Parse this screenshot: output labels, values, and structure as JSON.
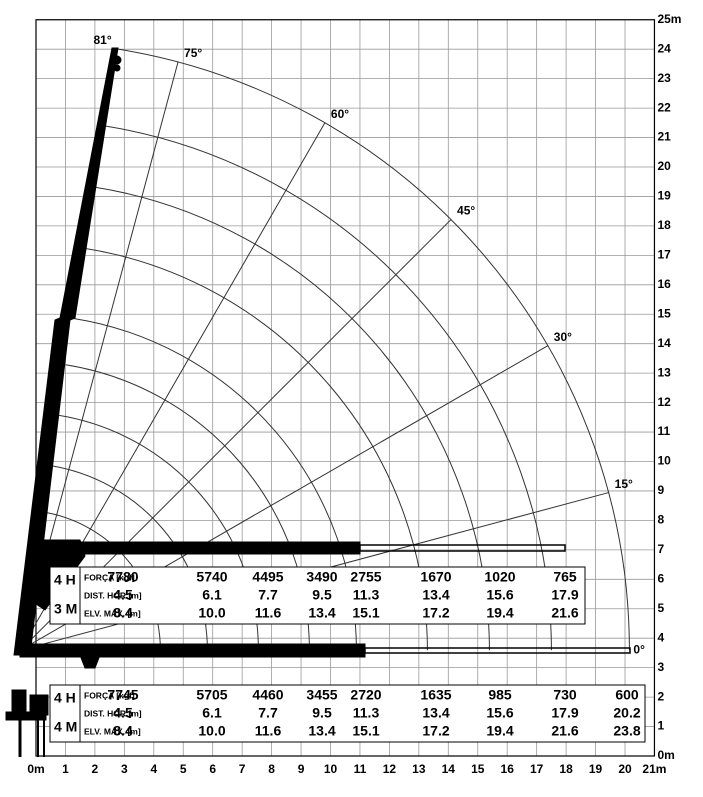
{
  "y_axis_labels": [
    "0m",
    "1",
    "2",
    "3",
    "4",
    "5",
    "6",
    "7",
    "8",
    "9",
    "10",
    "11",
    "12",
    "13",
    "14",
    "15",
    "16",
    "17",
    "18",
    "19",
    "20",
    "21",
    "22",
    "23",
    "24",
    "25m"
  ],
  "x_axis_labels": [
    "0m",
    "1",
    "2",
    "3",
    "4",
    "5",
    "6",
    "7",
    "8",
    "9",
    "10",
    "11",
    "12",
    "13",
    "14",
    "15",
    "16",
    "17",
    "18",
    "19",
    "20",
    "21m"
  ],
  "angle_labels": [
    {
      "label": "0°",
      "deg": 0
    },
    {
      "label": "15°",
      "deg": 15
    },
    {
      "label": "30°",
      "deg": 30
    },
    {
      "label": "45°",
      "deg": 45
    },
    {
      "label": "60°",
      "deg": 60
    },
    {
      "label": "75°",
      "deg": 75
    },
    {
      "label": "81°",
      "deg": 81
    }
  ],
  "tables": [
    {
      "side_labels": [
        "4 H",
        "3 M"
      ],
      "row_labels": [
        "FORÇA [kgf]",
        "DIST. HOR.[m]",
        "ELV. MÁX. [m]"
      ],
      "rows": [
        [
          "7780",
          "5740",
          "4495",
          "3490",
          "2755",
          "1670",
          "1020",
          "765"
        ],
        [
          "4.5",
          "6.1",
          "7.7",
          "9.5",
          "11.3",
          "13.4",
          "15.6",
          "17.9"
        ],
        [
          "8.4",
          "10.0",
          "11.6",
          "13.4",
          "15.1",
          "17.2",
          "19.4",
          "21.6"
        ]
      ]
    },
    {
      "side_labels": [
        "4 H",
        "4 M"
      ],
      "row_labels": [
        "FORÇA [kgf]",
        "DIST. HOR.[m]",
        "ELV. MÁX. [m]"
      ],
      "rows": [
        [
          "7745",
          "5705",
          "4460",
          "3455",
          "2720",
          "1635",
          "985",
          "730",
          "600"
        ],
        [
          "4.5",
          "6.1",
          "7.7",
          "9.5",
          "11.3",
          "13.4",
          "15.6",
          "17.9",
          "20.2"
        ],
        [
          "8.4",
          "10.0",
          "11.6",
          "13.4",
          "15.1",
          "17.2",
          "19.4",
          "21.6",
          "23.8"
        ]
      ]
    }
  ]
}
